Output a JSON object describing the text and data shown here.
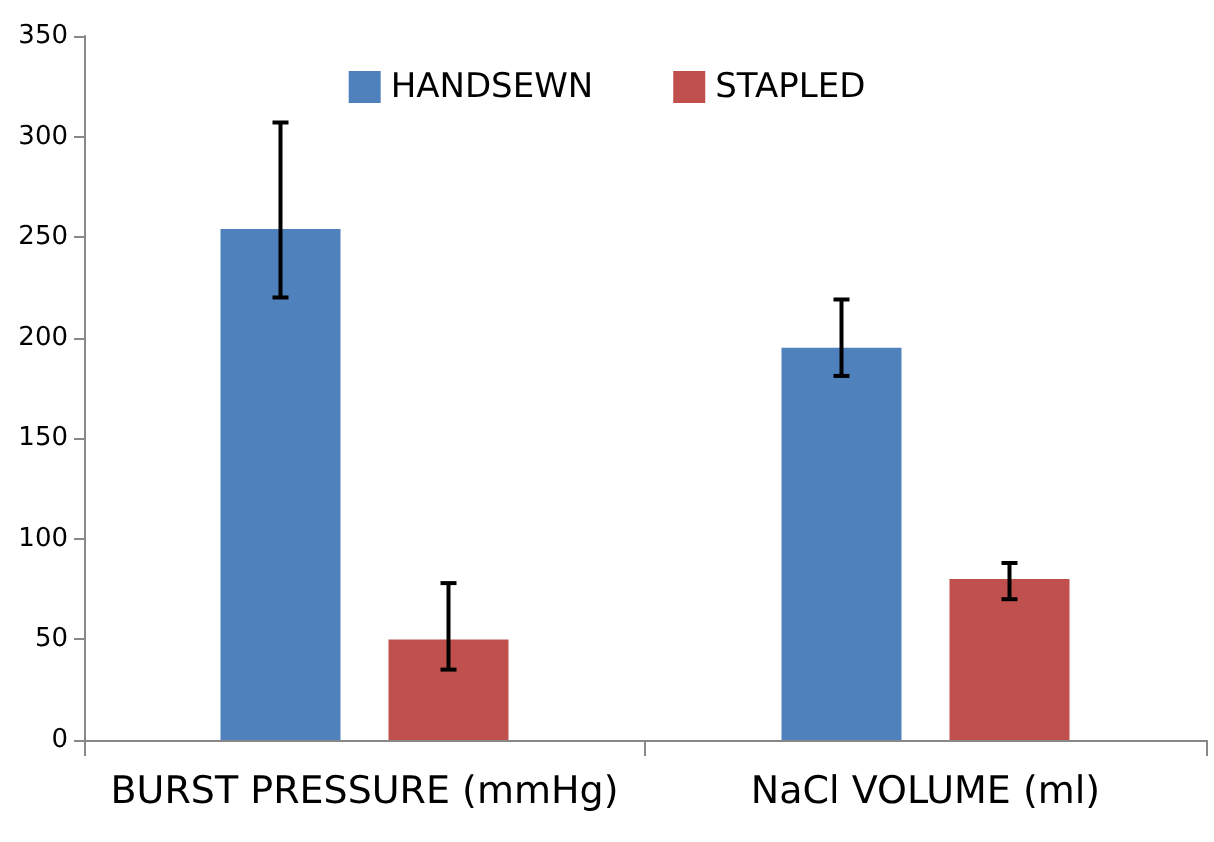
{
  "chart_data": {
    "type": "bar",
    "categories": [
      "BURST PRESSURE (mmHg)",
      "NaCl VOLUME (ml)"
    ],
    "series": [
      {
        "name": "HANDSEWN",
        "color": "#4f81bd",
        "values": [
          254,
          195
        ],
        "errors": [
          [
            220,
            307
          ],
          [
            181,
            219
          ]
        ]
      },
      {
        "name": "STAPLED",
        "color": "#c0504d",
        "values": [
          50,
          80
        ],
        "errors": [
          [
            35,
            78
          ],
          [
            70,
            88
          ]
        ]
      }
    ],
    "ylim": [
      0,
      350
    ],
    "yticks": [
      0,
      50,
      100,
      150,
      200,
      250,
      300,
      350
    ],
    "grid": false,
    "legend": "top"
  }
}
